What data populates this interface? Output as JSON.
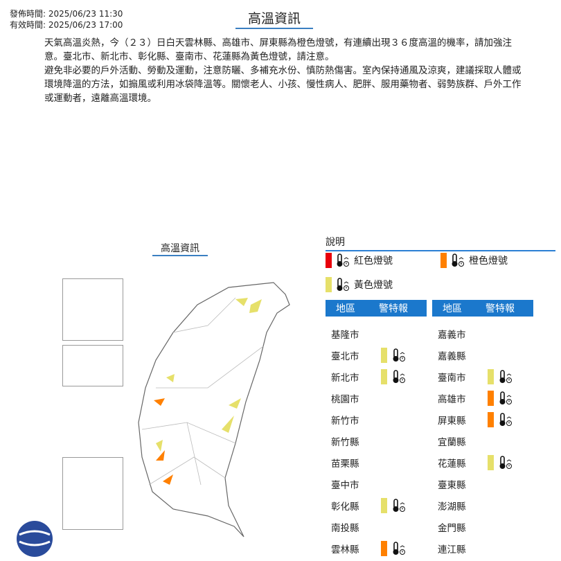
{
  "header": {
    "issue_time": "發佈時間: 2025/06/23 11:30",
    "valid_time": "有效時間: 2025/06/23 17:00",
    "title": "高溫資訊"
  },
  "body": {
    "paragraph1": "天氣高溫炎熱，今（２３）日白天雲林縣、高雄市、屏東縣為橙色燈號，有連續出現３６度高溫的機率，請加強注意。臺北市、新北市、彰化縣、臺南市、花蓮縣為黃色燈號，請注意。",
    "paragraph2": "避免非必要的戶外活動、勞動及運動，注意防曬、多補充水份、慎防熱傷害。室內保持通風及涼爽，建議採取人體或環境降溫的方法，如搧風或利用冰袋降溫等。關懷老人、小孩、慢性病人、肥胖、服用藥物者、弱勢族群、戶外工作或運動者，遠離高溫環境。"
  },
  "map": {
    "title": "高溫資訊"
  },
  "legend": {
    "title": "說明",
    "items": [
      {
        "label": "紅色燈號",
        "color": "#e8000b",
        "icon": "thermometer-red-icon"
      },
      {
        "label": "橙色燈號",
        "color": "#ff8000",
        "icon": "thermometer-orange-icon"
      },
      {
        "label": "黃色燈號",
        "color": "#e6e06a",
        "icon": "thermometer-yellow-icon"
      }
    ]
  },
  "table": {
    "col_region": "地區",
    "col_warning": "警特報",
    "left": [
      {
        "name": "基隆市",
        "level": ""
      },
      {
        "name": "臺北市",
        "level": "yellow"
      },
      {
        "name": "新北市",
        "level": "yellow"
      },
      {
        "name": "桃園市",
        "level": ""
      },
      {
        "name": "新竹市",
        "level": ""
      },
      {
        "name": "新竹縣",
        "level": ""
      },
      {
        "name": "苗栗縣",
        "level": ""
      },
      {
        "name": "臺中市",
        "level": ""
      },
      {
        "name": "彰化縣",
        "level": "yellow"
      },
      {
        "name": "南投縣",
        "level": ""
      },
      {
        "name": "雲林縣",
        "level": "orange"
      }
    ],
    "right": [
      {
        "name": "嘉義市",
        "level": ""
      },
      {
        "name": "嘉義縣",
        "level": ""
      },
      {
        "name": "臺南市",
        "level": "yellow"
      },
      {
        "name": "高雄市",
        "level": "orange"
      },
      {
        "name": "屏東縣",
        "level": "orange"
      },
      {
        "name": "宜蘭縣",
        "level": ""
      },
      {
        "name": "花蓮縣",
        "level": "yellow"
      },
      {
        "name": "臺東縣",
        "level": ""
      },
      {
        "name": "澎湖縣",
        "level": ""
      },
      {
        "name": "金門縣",
        "level": ""
      },
      {
        "name": "連江縣",
        "level": ""
      }
    ]
  },
  "colors": {
    "accent": "#1b78cc",
    "red": "#e8000b",
    "orange": "#ff8000",
    "yellow": "#e6e06a"
  }
}
